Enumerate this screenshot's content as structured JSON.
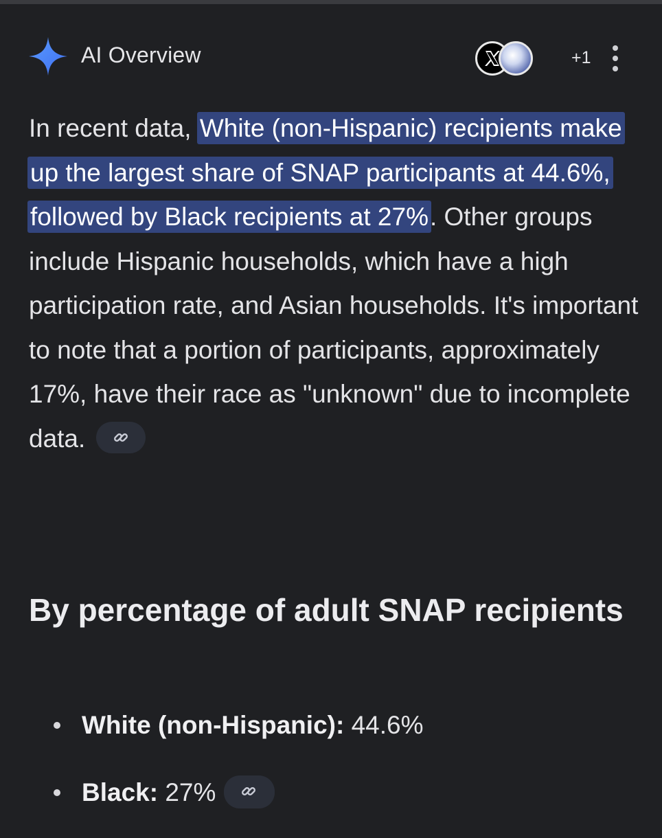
{
  "header": {
    "title": "AI Overview",
    "source_icons": [
      "x-logo-icon",
      "globe-icon"
    ],
    "more_sources": "+1",
    "menu_icon": "more-vert-icon"
  },
  "overview": {
    "intro": "In recent data, ",
    "highlight": "White (non-Hispanic) recipients make up the largest share of SNAP participants at 44.6%, followed by Black recipients at 27%",
    "rest": ". Other groups include Hispanic households, which have a high participation rate, and Asian households. It's important to note that a portion of participants, approximately 17%, have their race as \"unknown\" due to incomplete data.",
    "link_icon": "link-icon"
  },
  "section": {
    "heading": "By percentage of adult SNAP recipients",
    "items": [
      {
        "label": "White (non-Hispanic):",
        "value": " 44.6%",
        "has_link": false
      },
      {
        "label": "Black:",
        "value": " 27%",
        "has_link": true
      }
    ]
  },
  "colors": {
    "background": "#1f2023",
    "highlight": "#33457e",
    "sparkle_blue": "#4a7cf7",
    "chip": "#2b2f39"
  }
}
